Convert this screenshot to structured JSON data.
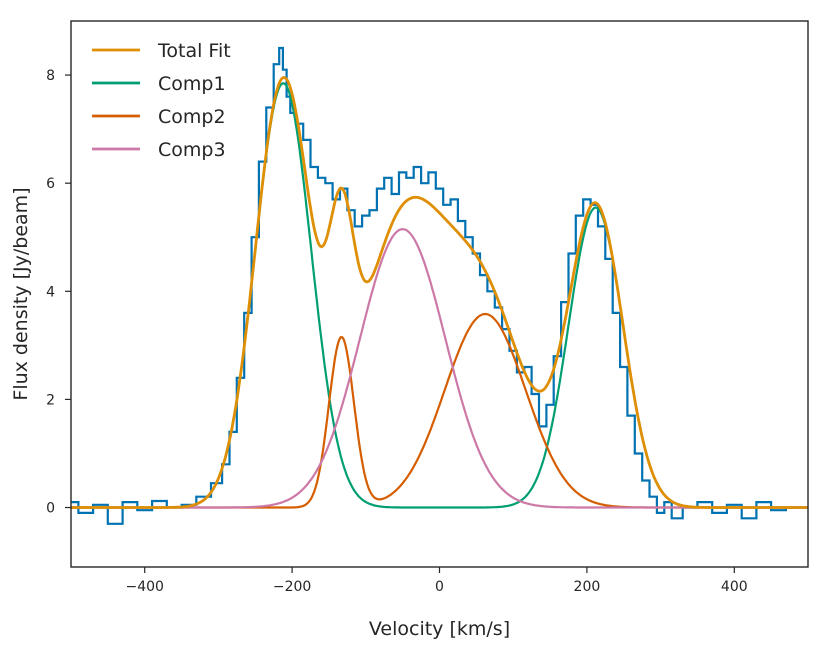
{
  "chart_data": {
    "type": "line",
    "title": "",
    "xlabel": "Velocity [km/s]",
    "ylabel": "Flux density [Jy/beam]",
    "xlim": [
      -500,
      500
    ],
    "ylim": [
      -1.1,
      9.0
    ],
    "xticks": [
      -400,
      -200,
      0,
      200,
      400
    ],
    "yticks": [
      0,
      2,
      4,
      6,
      8
    ],
    "grid": false,
    "legend_position": "top-left",
    "data_series": {
      "name": "Spectrum",
      "color": "#0072b2",
      "style": "steps-mid",
      "x": [
        -500,
        -480,
        -460,
        -440,
        -420,
        -400,
        -380,
        -360,
        -340,
        -320,
        -300,
        -290,
        -280,
        -270,
        -260,
        -250,
        -240,
        -230,
        -220,
        -215,
        -210,
        -205,
        -200,
        -190,
        -180,
        -170,
        -160,
        -150,
        -140,
        -130,
        -120,
        -110,
        -100,
        -90,
        -80,
        -70,
        -60,
        -50,
        -40,
        -30,
        -20,
        -10,
        0,
        10,
        20,
        30,
        40,
        50,
        60,
        70,
        80,
        90,
        100,
        110,
        120,
        130,
        140,
        150,
        160,
        170,
        180,
        190,
        200,
        210,
        220,
        230,
        240,
        250,
        260,
        270,
        280,
        290,
        300,
        310,
        320,
        340,
        360,
        380,
        400,
        420,
        440,
        460,
        480,
        500
      ],
      "y": [
        0.1,
        -0.1,
        0.05,
        -0.3,
        0.1,
        -0.05,
        0.12,
        0.0,
        0.05,
        0.2,
        0.45,
        0.8,
        1.4,
        2.4,
        3.6,
        5.0,
        6.4,
        7.4,
        8.2,
        8.5,
        8.1,
        7.6,
        7.3,
        7.1,
        6.8,
        6.3,
        6.1,
        6.0,
        5.7,
        5.9,
        5.5,
        5.2,
        5.4,
        5.5,
        5.9,
        6.1,
        5.8,
        6.2,
        6.1,
        6.3,
        6.0,
        6.2,
        5.9,
        5.6,
        5.7,
        5.3,
        5.0,
        4.7,
        4.3,
        4.0,
        3.7,
        3.3,
        2.9,
        2.5,
        2.6,
        2.1,
        1.5,
        1.9,
        2.8,
        3.8,
        4.7,
        5.4,
        5.7,
        5.6,
        5.2,
        4.6,
        3.6,
        2.6,
        1.7,
        1.0,
        0.5,
        0.2,
        -0.1,
        0.1,
        -0.2,
        0.0,
        0.1,
        -0.1,
        0.05,
        -0.2,
        0.1,
        -0.05,
        0.0,
        0.0
      ]
    },
    "components": [
      {
        "name": "Comp1",
        "color": "#009e73",
        "peaks": [
          {
            "amp": 7.85,
            "center": -212,
            "sigma": 38
          },
          {
            "amp": 5.55,
            "center": 212,
            "sigma": 37
          }
        ]
      },
      {
        "name": "Comp2",
        "color": "#d55e00",
        "peaks": [
          {
            "amp": 3.15,
            "center": -133,
            "sigma": 17
          },
          {
            "amp": 3.58,
            "center": 62,
            "sigma": 55
          }
        ]
      },
      {
        "name": "Comp3",
        "color": "#cc79a7",
        "peaks": [
          {
            "amp": 5.15,
            "center": -50,
            "sigma": 58
          }
        ]
      }
    ],
    "total_fit": {
      "name": "Total Fit",
      "color": "#de8f05",
      "description": "sum of Comp1 + Comp2 + Comp3"
    },
    "legend": [
      "Total Fit",
      "Comp1",
      "Comp2",
      "Comp3"
    ]
  }
}
